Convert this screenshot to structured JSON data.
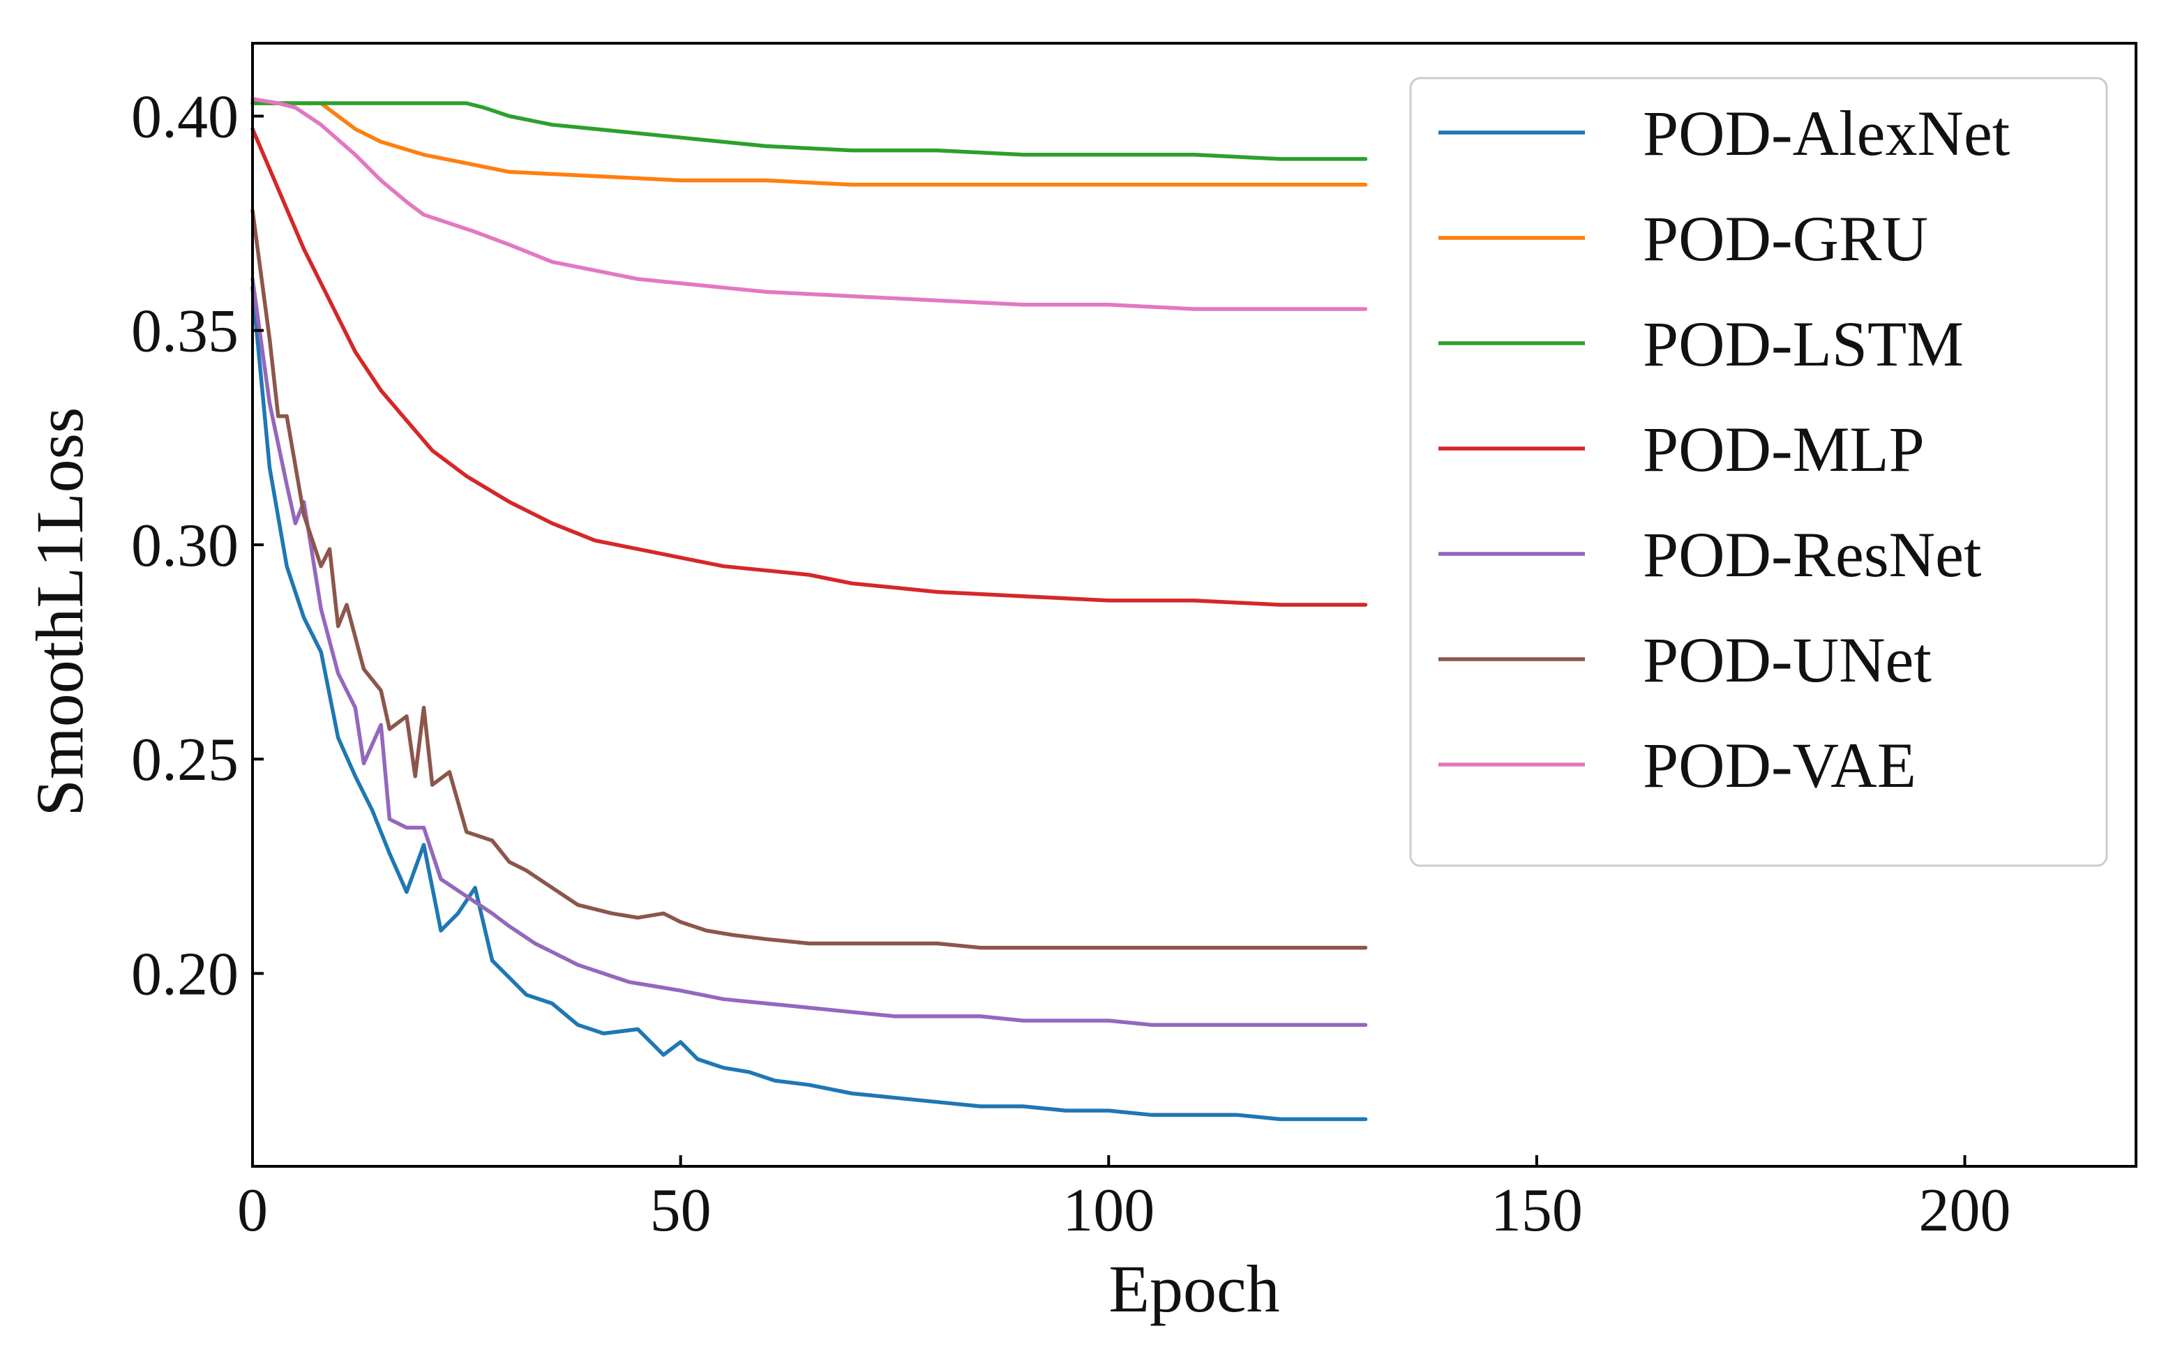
{
  "chart_data": {
    "type": "line",
    "title": "",
    "xlabel": "Epoch",
    "ylabel": "SmoothL1Loss",
    "xlim": [
      0,
      220
    ],
    "ylim": [
      0.155,
      0.417
    ],
    "xticks": [
      0,
      50,
      100,
      150,
      200
    ],
    "yticks": [
      0.2,
      0.25,
      0.3,
      0.35,
      0.4
    ],
    "xtick_labels": [
      "0",
      "50",
      "100",
      "150",
      "200"
    ],
    "ytick_labels": [
      "0.20",
      "0.25",
      "0.30",
      "0.35",
      "0.40"
    ],
    "grid": false,
    "legend_position": "top-right",
    "series": [
      {
        "name": "POD-AlexNet",
        "color": "#1f77b4",
        "x": [
          0,
          2,
          4,
          6,
          8,
          10,
          12,
          14,
          16,
          18,
          20,
          22,
          24,
          26,
          28,
          30,
          32,
          35,
          38,
          41,
          45,
          48,
          50,
          52,
          55,
          58,
          61,
          65,
          70,
          75,
          80,
          85,
          90,
          95,
          100,
          105,
          110,
          115,
          120,
          125,
          130
        ],
        "y": [
          0.36,
          0.318,
          0.295,
          0.283,
          0.275,
          0.255,
          0.246,
          0.238,
          0.228,
          0.219,
          0.23,
          0.21,
          0.214,
          0.22,
          0.203,
          0.199,
          0.195,
          0.193,
          0.188,
          0.186,
          0.187,
          0.181,
          0.184,
          0.18,
          0.178,
          0.177,
          0.175,
          0.174,
          0.172,
          0.171,
          0.17,
          0.169,
          0.169,
          0.168,
          0.168,
          0.167,
          0.167,
          0.167,
          0.166,
          0.166,
          0.166
        ]
      },
      {
        "name": "POD-GRU",
        "color": "#ff7f0e",
        "x": [
          0,
          5,
          8,
          10,
          12,
          15,
          20,
          25,
          30,
          40,
          50,
          60,
          70,
          80,
          90,
          100,
          110,
          120,
          130
        ],
        "y": [
          0.403,
          0.403,
          0.403,
          0.4,
          0.397,
          0.394,
          0.391,
          0.389,
          0.387,
          0.386,
          0.385,
          0.385,
          0.384,
          0.384,
          0.384,
          0.384,
          0.384,
          0.384,
          0.384
        ]
      },
      {
        "name": "POD-LSTM",
        "color": "#2ca02c",
        "x": [
          0,
          10,
          20,
          25,
          27,
          30,
          35,
          40,
          50,
          60,
          70,
          80,
          90,
          100,
          110,
          120,
          130
        ],
        "y": [
          0.403,
          0.403,
          0.403,
          0.403,
          0.402,
          0.4,
          0.398,
          0.397,
          0.395,
          0.393,
          0.392,
          0.392,
          0.391,
          0.391,
          0.391,
          0.39,
          0.39
        ]
      },
      {
        "name": "POD-MLP",
        "color": "#d62728",
        "x": [
          0,
          3,
          6,
          9,
          12,
          15,
          18,
          21,
          25,
          30,
          35,
          40,
          45,
          50,
          55,
          60,
          65,
          70,
          75,
          80,
          90,
          100,
          110,
          120,
          130
        ],
        "y": [
          0.397,
          0.383,
          0.369,
          0.357,
          0.345,
          0.336,
          0.329,
          0.322,
          0.316,
          0.31,
          0.305,
          0.301,
          0.299,
          0.297,
          0.295,
          0.294,
          0.293,
          0.291,
          0.29,
          0.289,
          0.288,
          0.287,
          0.287,
          0.286,
          0.286
        ]
      },
      {
        "name": "POD-ResNet",
        "color": "#9467bd",
        "x": [
          0,
          2,
          4,
          5,
          6,
          8,
          10,
          12,
          13,
          15,
          16,
          18,
          20,
          22,
          25,
          28,
          30,
          33,
          35,
          38,
          41,
          44,
          47,
          50,
          55,
          60,
          65,
          70,
          75,
          80,
          85,
          90,
          95,
          100,
          105,
          110,
          115,
          120,
          125,
          130
        ],
        "y": [
          0.362,
          0.333,
          0.314,
          0.305,
          0.31,
          0.285,
          0.27,
          0.262,
          0.249,
          0.258,
          0.236,
          0.234,
          0.234,
          0.222,
          0.218,
          0.214,
          0.211,
          0.207,
          0.205,
          0.202,
          0.2,
          0.198,
          0.197,
          0.196,
          0.194,
          0.193,
          0.192,
          0.191,
          0.19,
          0.19,
          0.19,
          0.189,
          0.189,
          0.189,
          0.188,
          0.188,
          0.188,
          0.188,
          0.188,
          0.188
        ]
      },
      {
        "name": "POD-UNet",
        "color": "#8c564b",
        "x": [
          0,
          2,
          3,
          4,
          6,
          8,
          9,
          10,
          11,
          13,
          15,
          16,
          18,
          19,
          20,
          21,
          23,
          25,
          28,
          30,
          32,
          35,
          38,
          40,
          42,
          45,
          48,
          50,
          53,
          56,
          60,
          65,
          70,
          75,
          80,
          85,
          90,
          95,
          100,
          105,
          110,
          115,
          120,
          125,
          130
        ],
        "y": [
          0.378,
          0.348,
          0.33,
          0.33,
          0.307,
          0.295,
          0.299,
          0.281,
          0.286,
          0.271,
          0.266,
          0.257,
          0.26,
          0.246,
          0.262,
          0.244,
          0.247,
          0.233,
          0.231,
          0.226,
          0.224,
          0.22,
          0.216,
          0.215,
          0.214,
          0.213,
          0.214,
          0.212,
          0.21,
          0.209,
          0.208,
          0.207,
          0.207,
          0.207,
          0.207,
          0.206,
          0.206,
          0.206,
          0.206,
          0.206,
          0.206,
          0.206,
          0.206,
          0.206,
          0.206
        ]
      },
      {
        "name": "POD-VAE",
        "color": "#e377c2",
        "x": [
          0,
          3,
          5,
          8,
          12,
          15,
          18,
          20,
          23,
          26,
          30,
          35,
          40,
          45,
          50,
          55,
          60,
          70,
          80,
          90,
          100,
          110,
          120,
          130
        ],
        "y": [
          0.404,
          0.403,
          0.402,
          0.398,
          0.391,
          0.385,
          0.38,
          0.377,
          0.375,
          0.373,
          0.37,
          0.366,
          0.364,
          0.362,
          0.361,
          0.36,
          0.359,
          0.358,
          0.357,
          0.356,
          0.356,
          0.355,
          0.355,
          0.355
        ]
      }
    ]
  }
}
